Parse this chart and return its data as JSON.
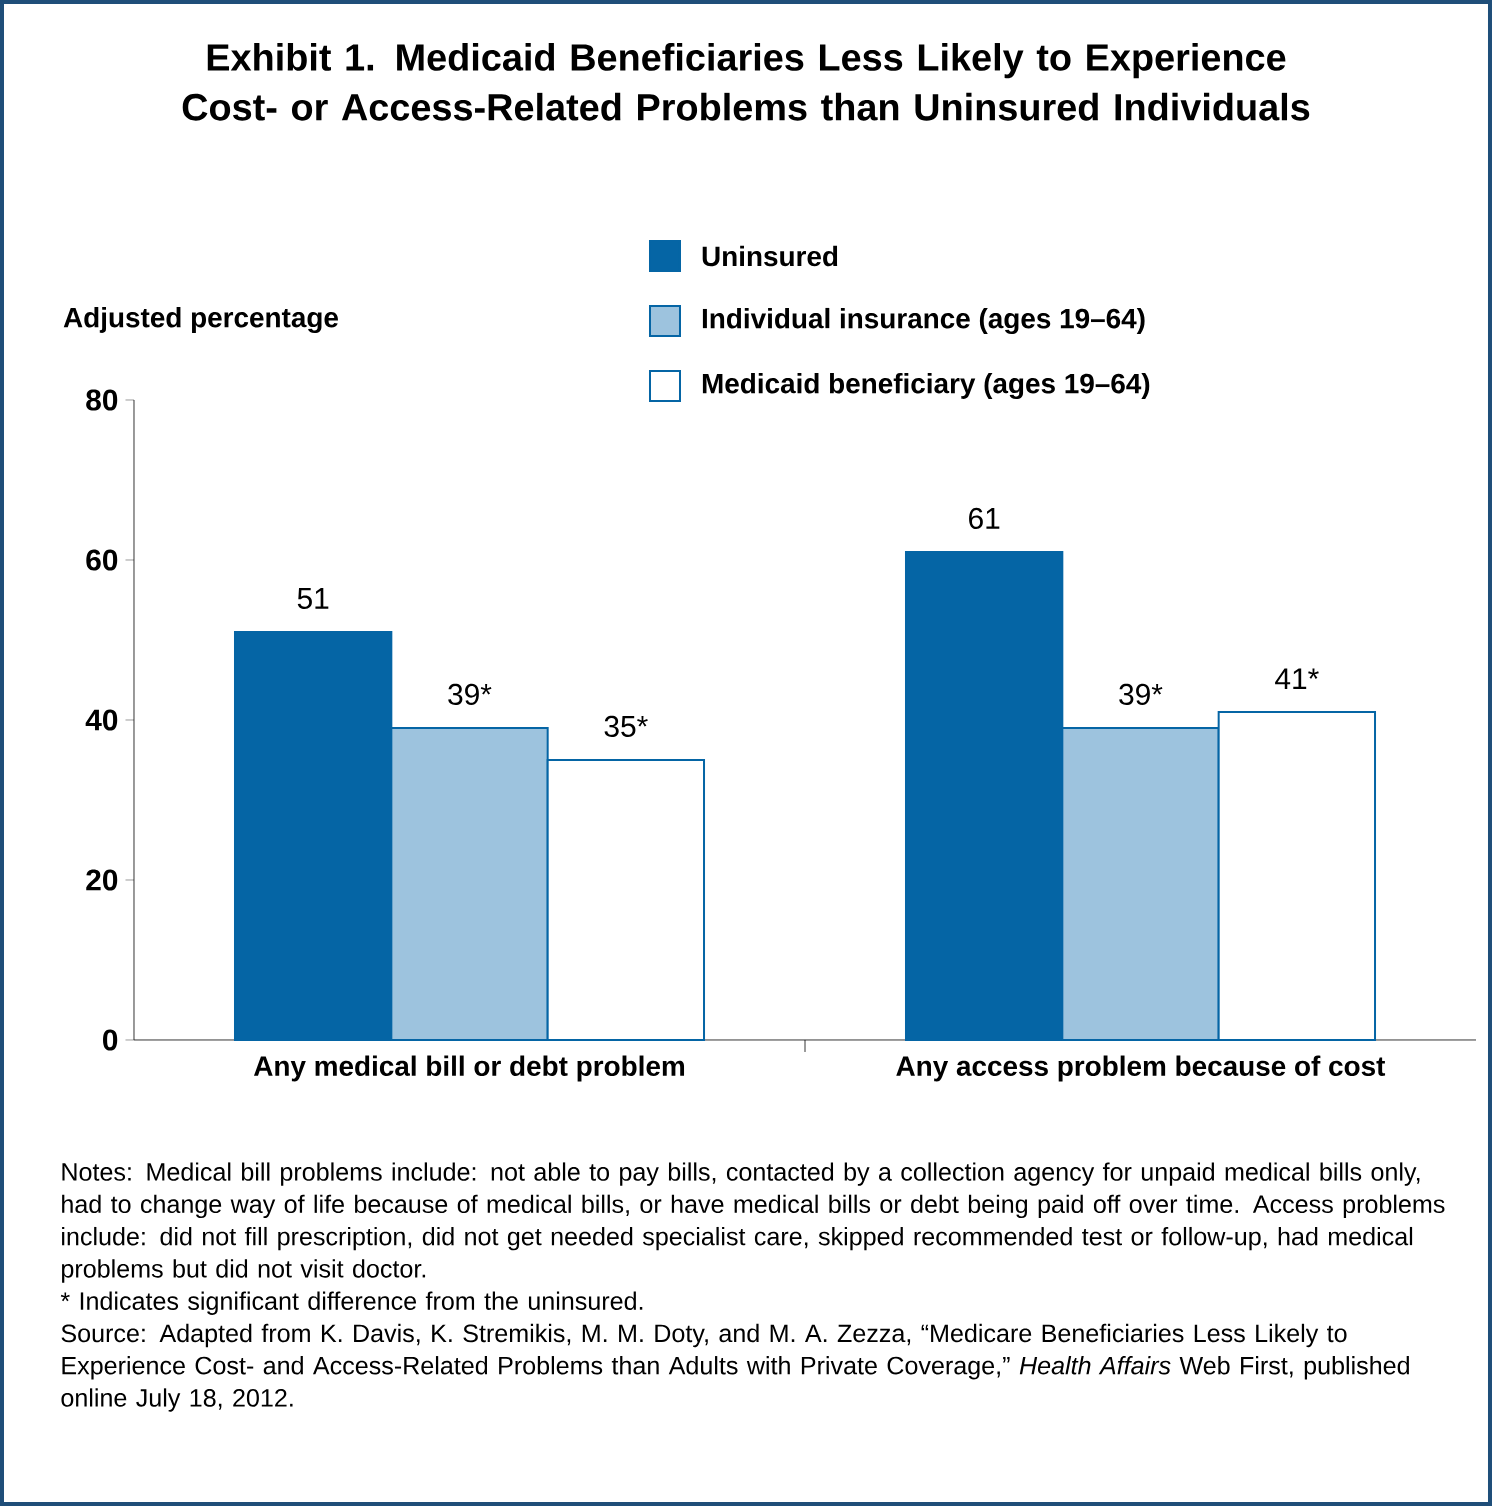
{
  "chart_data": {
    "type": "bar",
    "title": "Exhibit 1. Medicaid Beneficiaries Less Likely to Experience Cost- or Access-Related Problems than Uninsured Individuals",
    "ylabel": "Adjusted percentage",
    "categories": [
      "Any medical bill or debt problem",
      "Any access problem because of cost"
    ],
    "series": [
      {
        "name": "Uninsured",
        "color": "#0565a5",
        "values": [
          51,
          61
        ],
        "value_labels": [
          "51",
          "61"
        ]
      },
      {
        "name": "Individual insurance (ages 19–64)",
        "color": "#9dc3de",
        "values": [
          39,
          39
        ],
        "value_labels": [
          "39*",
          "39*"
        ]
      },
      {
        "name": "Medicaid beneficiary (ages 19–64)",
        "color": "#ffffff",
        "values": [
          35,
          41
        ],
        "value_labels": [
          "35*",
          "41*"
        ]
      }
    ],
    "ylim": [
      0,
      80
    ],
    "yticks": [
      0,
      20,
      40,
      60,
      80
    ],
    "grid": false,
    "legend": "top right",
    "annotations": [
      "Notes: Medical bill problems include: not able to pay bills, contacted by a collection agency for unpaid medical bills only, had to change way of life because of medical bills, or have medical bills or debt being paid off over time. Access problems include: did not fill prescription, did not get needed specialist care, skipped recommended test or follow-up, had medical problems but did not visit doctor.",
      "* Indicates significant difference from the uninsured.",
      "Source: Adapted from K. Davis, K. Stremikis, M. M. Doty, and M. A. Zezza, “Medicare Beneficiaries Less Likely to Experience Cost- and Access-Related Problems than Adults with Private Coverage,” *Health Affairs* Web First, published online July 18, 2012."
    ]
  }
}
